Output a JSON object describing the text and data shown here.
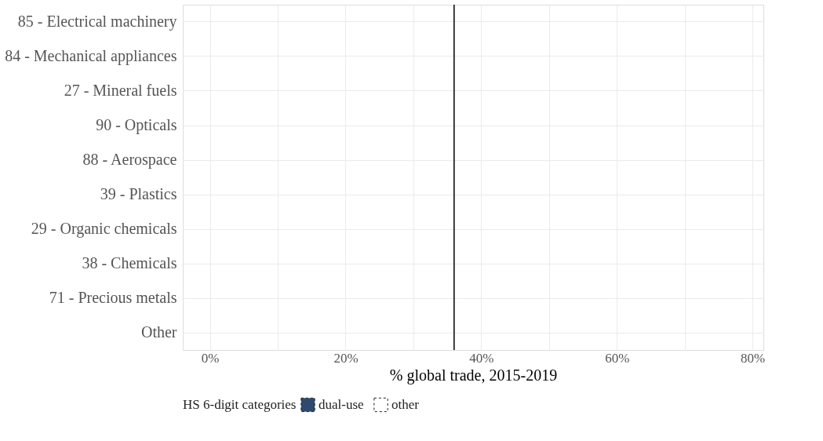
{
  "chart_data": {
    "type": "bar",
    "orientation": "horizontal",
    "xlabel": "% global trade, 2015-2019",
    "legend_title": "HS 6-digit categories",
    "categories": [
      "85 - Electrical machinery",
      "84 - Mechanical appliances",
      "27 - Mineral fuels",
      "90 - Opticals",
      "88 - Aerospace",
      "39 - Plastics",
      "29 - Organic chemicals",
      "38 - Chemicals",
      "71 - Precious metals",
      "Other"
    ],
    "series": [
      {
        "name": "dual-use",
        "color": "#2e4a6e",
        "line_style": "dashed",
        "values": [
          null,
          null,
          null,
          null,
          null,
          null,
          null,
          null,
          null,
          null
        ]
      },
      {
        "name": "other",
        "color": "#ffffff",
        "line_style": "dashed",
        "values": [
          null,
          null,
          null,
          null,
          null,
          null,
          null,
          null,
          null,
          null
        ]
      }
    ],
    "xlim": [
      -4,
      81.6
    ],
    "xticks": [
      {
        "value": 0,
        "label": "0%"
      },
      {
        "value": 10,
        "label": null
      },
      {
        "value": 20,
        "label": "20%"
      },
      {
        "value": 30,
        "label": null
      },
      {
        "value": 40,
        "label": "40%"
      },
      {
        "value": 50,
        "label": null
      },
      {
        "value": 60,
        "label": "60%"
      },
      {
        "value": 70,
        "label": null
      },
      {
        "value": 80,
        "label": "80%"
      }
    ],
    "ref_lines": [
      {
        "axis": "x",
        "value": 36,
        "label": null,
        "color": "#000000"
      }
    ],
    "grid": true,
    "legend": "bottom"
  }
}
